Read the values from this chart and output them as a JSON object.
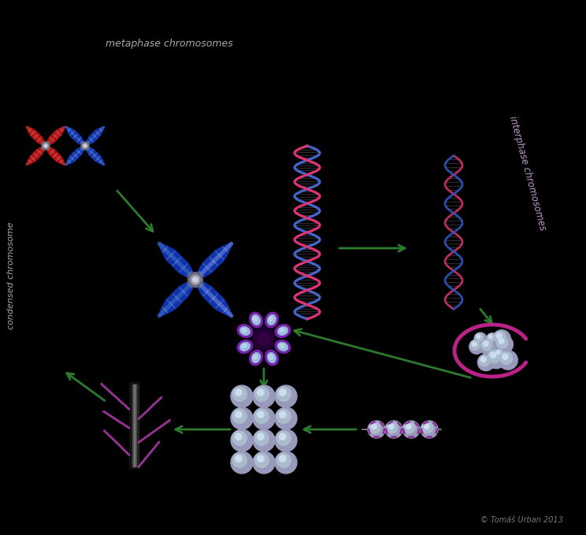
{
  "background_color": "#000000",
  "arrow_color": "#2d7a2d",
  "label_metaphase": "metaphase chromosomes",
  "label_interphase": "interphase chromosomes",
  "label_condensed": "condensed chromosome",
  "copyright": "© Tomáš Urban 2013",
  "label_color": "#aaaaaa",
  "interphase_label_color": "#bb99cc",
  "dna_blue": "#4466cc",
  "dna_pink": "#dd3377",
  "chromosome_blue_dark": "#1133aa",
  "chromosome_blue_light": "#4477cc",
  "chromosome_red_dark": "#aa1111",
  "chromosome_red_light": "#cc3333",
  "histone_purple_dark": "#5522aa",
  "histone_purple_light": "#8855cc",
  "histone_blue": "#aabbee",
  "nucleosome_purple": "#6633aa",
  "nucleosome_blue": "#99aabb",
  "nucleosome_light": "#bbccdd",
  "fiber_purple": "#882299",
  "centromere_color": "#888899",
  "nucleus_membrane": "#993388",
  "nucleus_blue1": "#7788bb",
  "nucleus_blue2": "#99aacc",
  "scaffold_dark": "#111111",
  "scaffold_mid": "#333333"
}
